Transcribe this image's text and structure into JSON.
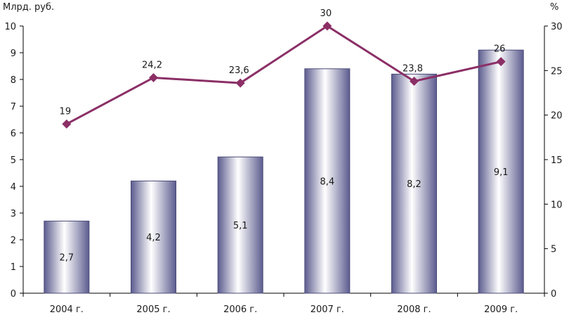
{
  "chart_data": {
    "type": "bar",
    "categories": [
      "2004 г.",
      "2005 г.",
      "2006 г.",
      "2007 г.",
      "2008 г.",
      "2009 г."
    ],
    "series": [
      {
        "kind": "bar",
        "axis": "left",
        "values": [
          2.7,
          4.2,
          5.1,
          8.4,
          8.2,
          9.1
        ],
        "labels": [
          "2,7",
          "4,2",
          "5,1",
          "8,4",
          "8,2",
          "9,1"
        ]
      },
      {
        "kind": "line",
        "axis": "right",
        "values": [
          19,
          24.2,
          23.6,
          30,
          23.8,
          26
        ],
        "labels": [
          "19",
          "24,2",
          "23,6",
          "30",
          "23,8",
          "26"
        ]
      }
    ],
    "ylabel": "Млрд. руб.",
    "y2label": "%",
    "ylim": [
      0,
      10
    ],
    "y2lim": [
      0,
      30
    ],
    "yticks": [
      0,
      1,
      2,
      3,
      4,
      5,
      6,
      7,
      8,
      9,
      10
    ],
    "y2ticks": [
      0,
      5,
      10,
      15,
      20,
      25,
      30
    ],
    "grid": false,
    "colors": {
      "bar_edge": "#4b4b7a",
      "bar_light": "#ffffff",
      "bar_dark": "#5c5c8f",
      "line": "#8b2f66",
      "axis": "#000000"
    }
  }
}
